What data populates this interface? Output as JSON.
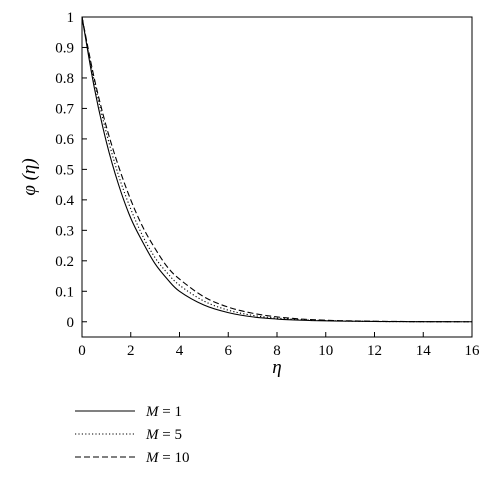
{
  "chart_data": {
    "type": "line",
    "xlabel": "η",
    "ylabel": "φ (η)",
    "xlim": [
      0,
      16
    ],
    "ylim": [
      -0.05,
      1
    ],
    "xticks": [
      0,
      2,
      4,
      6,
      8,
      10,
      12,
      14,
      16
    ],
    "yticks": [
      0,
      0.1,
      0.2,
      0.3,
      0.4,
      0.5,
      0.6,
      0.7,
      0.8,
      0.9,
      1
    ],
    "xtick_labels": [
      "0",
      "2",
      "4",
      "6",
      "8",
      "10",
      "12",
      "14",
      "16"
    ],
    "ytick_labels": [
      "0",
      "0.1",
      "0.2",
      "0.3",
      "0.4",
      "0.5",
      "0.6",
      "0.7",
      "0.8",
      "0.9",
      "1"
    ],
    "grid": false,
    "legend_position": "below-left",
    "x": [
      0,
      0.5,
      1,
      1.5,
      2,
      2.5,
      3,
      3.5,
      4,
      5,
      6,
      7,
      8,
      9,
      10,
      11,
      12,
      13,
      14,
      15,
      16
    ],
    "series": [
      {
        "name": "M = 1",
        "symbol": "M",
        "value_text": " = 1",
        "style": "solid",
        "values": [
          1.0,
          0.77,
          0.59,
          0.45,
          0.34,
          0.26,
          0.19,
          0.14,
          0.1,
          0.055,
          0.03,
          0.016,
          0.009,
          0.005,
          0.003,
          0.002,
          0.001,
          0.0005,
          0.0003,
          0.0001,
          0.0
        ]
      },
      {
        "name": "M = 5",
        "symbol": "M",
        "value_text": " = 5",
        "style": "dotted",
        "values": [
          1.0,
          0.79,
          0.62,
          0.48,
          0.37,
          0.28,
          0.21,
          0.16,
          0.12,
          0.068,
          0.038,
          0.021,
          0.012,
          0.007,
          0.004,
          0.002,
          0.001,
          0.0006,
          0.0003,
          0.0001,
          0.0
        ]
      },
      {
        "name": "M = 10",
        "symbol": "M",
        "value_text": " = 10",
        "style": "dashed",
        "values": [
          1.0,
          0.8,
          0.64,
          0.51,
          0.4,
          0.31,
          0.24,
          0.18,
          0.14,
          0.082,
          0.048,
          0.028,
          0.016,
          0.009,
          0.005,
          0.003,
          0.0017,
          0.001,
          0.0005,
          0.0002,
          0.0
        ]
      }
    ]
  }
}
